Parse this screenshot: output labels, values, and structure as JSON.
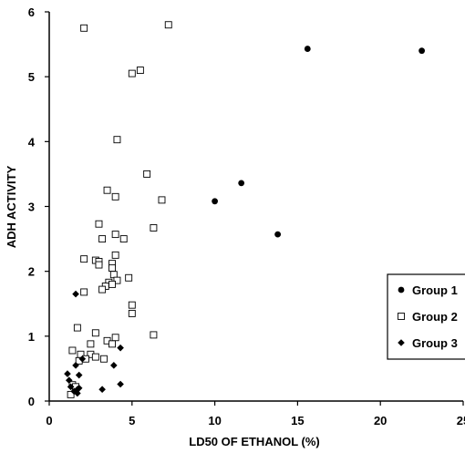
{
  "chart_data": {
    "type": "scatter",
    "title": "",
    "xlabel": "LD50 OF ETHANOL (%)",
    "ylabel": "ADH ACTIVITY",
    "xlim": [
      0,
      25
    ],
    "ylim": [
      0,
      6
    ],
    "x_ticks": [
      0,
      5,
      10,
      15,
      20,
      25
    ],
    "y_ticks": [
      0,
      1,
      2,
      3,
      4,
      5,
      6
    ],
    "grid": false,
    "legend_position": "right",
    "series": [
      {
        "name": "Group 1",
        "marker": "filled-circle",
        "color": "#000000",
        "points": [
          [
            10.0,
            3.08
          ],
          [
            11.6,
            3.36
          ],
          [
            13.8,
            2.57
          ],
          [
            15.6,
            5.43
          ],
          [
            22.5,
            5.4
          ]
        ]
      },
      {
        "name": "Group 2",
        "marker": "open-square",
        "color": "#000000",
        "points": [
          [
            2.1,
            5.75
          ],
          [
            7.2,
            5.8
          ],
          [
            5.0,
            5.05
          ],
          [
            5.5,
            5.1
          ],
          [
            4.1,
            4.03
          ],
          [
            5.9,
            3.5
          ],
          [
            3.5,
            3.25
          ],
          [
            4.0,
            3.15
          ],
          [
            6.8,
            3.1
          ],
          [
            3.0,
            2.73
          ],
          [
            6.3,
            2.67
          ],
          [
            4.0,
            2.57
          ],
          [
            3.2,
            2.5
          ],
          [
            4.5,
            2.5
          ],
          [
            4.0,
            2.25
          ],
          [
            2.1,
            2.19
          ],
          [
            2.8,
            2.17
          ],
          [
            3.0,
            2.15
          ],
          [
            3.0,
            2.1
          ],
          [
            3.8,
            2.12
          ],
          [
            3.8,
            2.05
          ],
          [
            3.9,
            1.95
          ],
          [
            4.8,
            1.9
          ],
          [
            4.1,
            1.86
          ],
          [
            3.6,
            1.83
          ],
          [
            3.4,
            1.77
          ],
          [
            3.8,
            1.8
          ],
          [
            3.2,
            1.72
          ],
          [
            2.1,
            1.68
          ],
          [
            5.0,
            1.48
          ],
          [
            5.0,
            1.35
          ],
          [
            1.7,
            1.13
          ],
          [
            2.8,
            1.05
          ],
          [
            6.3,
            1.02
          ],
          [
            4.0,
            0.98
          ],
          [
            3.5,
            0.93
          ],
          [
            2.5,
            0.88
          ],
          [
            3.8,
            0.88
          ],
          [
            1.4,
            0.78
          ],
          [
            1.9,
            0.72
          ],
          [
            2.5,
            0.72
          ],
          [
            2.8,
            0.68
          ],
          [
            3.3,
            0.65
          ],
          [
            2.2,
            0.65
          ],
          [
            1.8,
            0.62
          ],
          [
            1.4,
            0.25
          ],
          [
            1.6,
            0.22
          ],
          [
            1.3,
            0.1
          ]
        ]
      },
      {
        "name": "Group 3",
        "marker": "filled-diamond",
        "color": "#000000",
        "points": [
          [
            1.6,
            1.65
          ],
          [
            4.3,
            0.82
          ],
          [
            2.0,
            0.65
          ],
          [
            1.6,
            0.55
          ],
          [
            3.9,
            0.55
          ],
          [
            1.1,
            0.42
          ],
          [
            1.8,
            0.4
          ],
          [
            1.2,
            0.32
          ],
          [
            4.3,
            0.26
          ],
          [
            1.3,
            0.22
          ],
          [
            1.8,
            0.2
          ],
          [
            1.7,
            0.18
          ],
          [
            3.2,
            0.18
          ],
          [
            1.5,
            0.15
          ],
          [
            1.7,
            0.12
          ]
        ]
      }
    ]
  }
}
